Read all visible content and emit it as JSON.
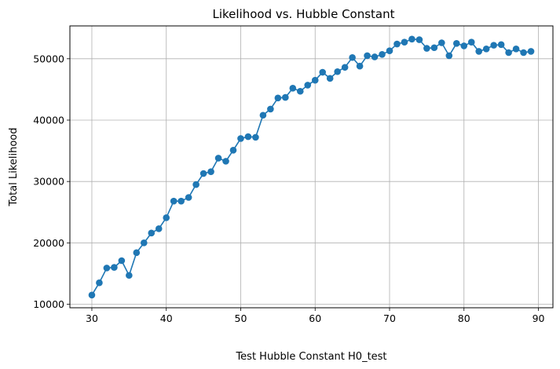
{
  "chart_data": {
    "type": "line",
    "title": "Likelihood vs. Hubble Constant",
    "xlabel": "Test Hubble Constant H0_test",
    "ylabel": "Total Likelihood",
    "xlim": [
      27.05,
      91.95
    ],
    "ylim": [
      9425,
      55350
    ],
    "xticks": [
      30,
      40,
      50,
      60,
      70,
      80,
      90
    ],
    "yticks": [
      10000,
      20000,
      30000,
      40000,
      50000
    ],
    "xtick_labels": [
      "30",
      "40",
      "50",
      "60",
      "70",
      "80",
      "90"
    ],
    "ytick_labels": [
      "10000",
      "20000",
      "30000",
      "40000",
      "50000"
    ],
    "grid": true,
    "markers": true,
    "color": "#1f77b4",
    "series": [
      {
        "x": [
          30,
          31,
          32,
          33,
          34,
          35,
          36,
          37,
          38,
          39,
          40,
          41,
          42,
          43,
          44,
          45,
          46,
          47,
          48,
          49,
          50,
          51,
          52,
          53,
          54,
          55,
          56,
          57,
          58,
          59,
          60,
          61,
          62,
          63,
          64,
          65,
          66,
          67,
          68,
          69,
          70,
          71,
          72,
          73,
          74,
          75,
          76,
          77,
          78,
          79,
          80,
          81,
          82,
          83,
          84,
          85,
          86,
          87,
          88,
          89
        ],
        "values": [
          11500,
          13500,
          15900,
          16000,
          17100,
          14700,
          18400,
          20000,
          21600,
          22300,
          24100,
          26800,
          26800,
          27400,
          29500,
          31300,
          31600,
          33800,
          33300,
          35100,
          37000,
          37300,
          37200,
          40800,
          41800,
          43600,
          43700,
          45200,
          44700,
          45700,
          46500,
          47800,
          46800,
          47900,
          48600,
          50200,
          48800,
          50500,
          50300,
          50700,
          51300,
          52400,
          52700,
          53200,
          53100,
          51700,
          51800,
          52600,
          50500,
          52500,
          52100,
          52700,
          51200,
          51600,
          52200,
          52300,
          51000,
          51600,
          51000,
          51200
        ]
      }
    ]
  }
}
